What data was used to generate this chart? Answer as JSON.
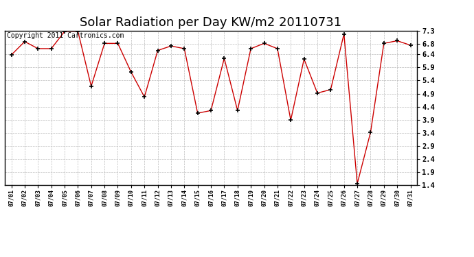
{
  "title": "Solar Radiation per Day KW/m2 20110731",
  "copyright_text": "Copyright 2011 Cartronics.com",
  "dates": [
    "07/01",
    "07/02",
    "07/03",
    "07/04",
    "07/05",
    "07/06",
    "07/07",
    "07/08",
    "07/09",
    "07/10",
    "07/11",
    "07/12",
    "07/13",
    "07/14",
    "07/15",
    "07/16",
    "07/17",
    "07/18",
    "07/19",
    "07/20",
    "07/21",
    "07/22",
    "07/23",
    "07/24",
    "07/25",
    "07/26",
    "07/27",
    "07/28",
    "07/29",
    "07/30",
    "07/31"
  ],
  "values": [
    6.38,
    6.89,
    6.62,
    6.62,
    7.28,
    7.28,
    5.18,
    6.82,
    6.82,
    5.72,
    4.77,
    6.55,
    6.72,
    6.62,
    4.15,
    4.25,
    6.25,
    4.25,
    6.62,
    6.82,
    6.62,
    3.88,
    6.22,
    4.92,
    5.05,
    7.18,
    1.45,
    3.42,
    6.82,
    6.92,
    6.75
  ],
  "line_color": "#cc0000",
  "marker": "+",
  "marker_color": "#000000",
  "bg_color": "#ffffff",
  "plot_bg_color": "#ffffff",
  "grid_color": "#bbbbbb",
  "ylim": [
    1.4,
    7.3
  ],
  "yticks": [
    1.4,
    1.9,
    2.4,
    2.9,
    3.4,
    3.9,
    4.4,
    4.9,
    5.4,
    5.9,
    6.4,
    6.8,
    7.3
  ],
  "title_fontsize": 13,
  "copyright_fontsize": 7
}
